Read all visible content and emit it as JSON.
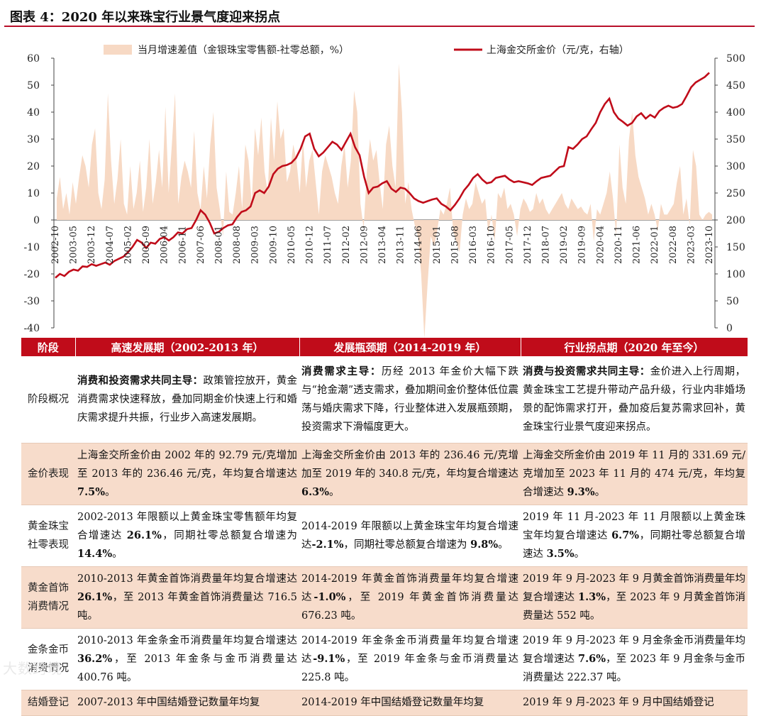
{
  "title": "图表 4：2020 年以来珠宝行业景气度迎来拐点",
  "chart_data": {
    "type": "bar+line",
    "legend": [
      {
        "name": "当月增速差值（金银珠宝零售额-社零总额，%）",
        "kind": "area",
        "color": "#f7d9c4"
      },
      {
        "name": "上海金交所金价（元/克，右轴）",
        "kind": "line",
        "color": "#c00c1a"
      }
    ],
    "left_axis": {
      "ticks": [
        60,
        50,
        40,
        30,
        20,
        10,
        0,
        -10,
        -20,
        -30,
        -40
      ],
      "ylim": [
        -40,
        60
      ]
    },
    "right_axis": {
      "ticks": [
        500,
        450,
        400,
        350,
        300,
        250,
        200,
        150,
        100,
        50,
        0
      ],
      "ylim": [
        0,
        500
      ]
    },
    "x_labels": [
      "2002-10",
      "2003-05",
      "2003-12",
      "2004-07",
      "2005-02",
      "2005-09",
      "2006-04",
      "2006-11",
      "2007-06",
      "2008-01",
      "2008-08",
      "2009-03",
      "2009-10",
      "2010-05",
      "2010-12",
      "2011-07",
      "2012-02",
      "2012-09",
      "2013-04",
      "2013-11",
      "2014-06",
      "2015-01",
      "2015-08",
      "2016-03",
      "2016-10",
      "2017-05",
      "2017-12",
      "2018-07",
      "2019-02",
      "2019-09",
      "2020-04",
      "2020-11",
      "2021-06",
      "2022-01",
      "2022-08",
      "2023-03",
      "2023-10"
    ],
    "diff_series": [
      8,
      16,
      4,
      10,
      2,
      14,
      6,
      16,
      24,
      20,
      12,
      28,
      34,
      10,
      4,
      15,
      47,
      22,
      6,
      15,
      30,
      6,
      2,
      20,
      4,
      10,
      22,
      3,
      12,
      30,
      6,
      14,
      26,
      12,
      42,
      10,
      28,
      47,
      6,
      16,
      22,
      18,
      12,
      33,
      10,
      4,
      20,
      8,
      28,
      40,
      12,
      4,
      -6,
      18,
      3,
      2,
      10,
      20,
      4,
      28,
      22,
      6,
      34,
      24,
      38,
      18,
      10,
      38,
      22,
      44,
      30,
      34,
      14,
      18,
      28,
      22,
      10,
      30,
      12,
      22,
      26,
      14,
      2,
      18,
      24,
      20,
      16,
      10,
      6,
      20,
      28,
      12,
      22,
      48,
      40,
      6,
      -3,
      18,
      30,
      22,
      26,
      14,
      4,
      28,
      35,
      20,
      12,
      58,
      40,
      6,
      14,
      4,
      -2,
      -6,
      -20,
      -44,
      -24,
      -6,
      -10,
      -4,
      4,
      2,
      6,
      12,
      -4,
      -8,
      -12,
      2,
      8,
      4,
      6,
      14,
      10,
      6,
      8,
      -5,
      2,
      -8,
      10,
      8,
      12,
      4,
      6,
      2,
      -6,
      4,
      8,
      6,
      3,
      4,
      10,
      6,
      8,
      4,
      2,
      4,
      6,
      8,
      10,
      6,
      4,
      8,
      6,
      4,
      5,
      3,
      2,
      6,
      -8,
      4,
      2,
      6,
      10,
      18,
      8,
      -6,
      28,
      12,
      6,
      30,
      40,
      24,
      16,
      12,
      8,
      2,
      6,
      2,
      -4,
      6,
      2,
      2,
      4,
      6,
      14,
      20,
      2,
      8,
      -2,
      26,
      20,
      2,
      0,
      2,
      3,
      2
    ],
    "gold_series": [
      92.79,
      100,
      96,
      104,
      108,
      106,
      114,
      113,
      118,
      115,
      118,
      121,
      117,
      124,
      128,
      132,
      140,
      150,
      163,
      158,
      148,
      158,
      156,
      165,
      168,
      162,
      168,
      177,
      175,
      183,
      185,
      200,
      218,
      210,
      195,
      175,
      178,
      185,
      190,
      192,
      205,
      215,
      218,
      225,
      250,
      255,
      250,
      262,
      285,
      295,
      300,
      302,
      306,
      315,
      332,
      355,
      360,
      332,
      318,
      325,
      335,
      345,
      340,
      330,
      345,
      360,
      335,
      320,
      280,
      250,
      260,
      262,
      268,
      272,
      258,
      252,
      260,
      258,
      250,
      240,
      235,
      232,
      235,
      238,
      240,
      230,
      225,
      218,
      228,
      240,
      255,
      265,
      278,
      285,
      275,
      268,
      270,
      278,
      280,
      282,
      275,
      270,
      272,
      270,
      268,
      265,
      272,
      278,
      280,
      282,
      290,
      298,
      300,
      335,
      332,
      340,
      350,
      355,
      368,
      380,
      400,
      415,
      425,
      400,
      388,
      382,
      375,
      380,
      392,
      398,
      388,
      395,
      390,
      402,
      408,
      412,
      408,
      410,
      415,
      430,
      446,
      455,
      460,
      465,
      473
    ],
    "gold_start": 92.79,
    "gold_end": 474
  },
  "table": {
    "headers": [
      "阶段",
      "高速发展期（2002-2013 年）",
      "发展瓶颈期（2014-2019 年）",
      "行业拐点期（2020 年至今）"
    ],
    "rows": [
      {
        "label": "阶段概况",
        "cells": [
          {
            "b": "消费和投资需求共同主导：",
            "t": "政策管控放开，黄金消费需求快速释放，叠加同期金价快速上行和婚庆需求提升共振，行业步入高速发展期。"
          },
          {
            "b": "消费需求主导：",
            "t": "历经 2013 年金价大幅下跌与“抢金潮”透支需求，叠加期间金价整体低位震荡与婚庆需求下降，行业整体进入发展瓶颈期，投资需求下滑幅度更大。"
          },
          {
            "b": "消费与投资需求共同主导：",
            "t": "金价进入上行周期，黄金珠宝工艺提升带动产品升级，行业内非婚场景的配饰需求打开，叠加疫后复苏需求回补，黄金珠宝行业景气度迎来拐点。"
          }
        ]
      },
      {
        "label": "金价表现",
        "cells": [
          {
            "t": "上海金交所金价由 2002 年的 92.79 元/克增加至 2013 年的 236.46 元/克，年均复合增速达 ",
            "b2": "7.5%",
            "t2": "。"
          },
          {
            "t": "上海金交所金价由 2013 年的 236.46 元/克增加至 2019 年的 340.8 元/克，年均复合增速达 ",
            "b2": "6.3%",
            "t2": "。"
          },
          {
            "t": "上海金交所金价由 2019 年 11 月的 331.69 元/克增加至 2023 年 11 月的 474 元/克，年均复合增速达 ",
            "b2": "9.3%",
            "t2": "。"
          }
        ]
      },
      {
        "label": "黄金珠宝社零表现",
        "cells": [
          {
            "t": "2002-2013 年限额以上黄金珠宝零售额年均复合增速达 ",
            "b2": "26.1%",
            "t2": "，同期社零总额复合增速为 ",
            "b3": "14.4%",
            "t3": "。"
          },
          {
            "t": "2014-2019 年限额以上黄金珠宝年均复合增速达",
            "b2": "-2.1%",
            "t2": "，同期社零总额复合增速为 ",
            "b3": "9.8%",
            "t3": "。"
          },
          {
            "t": "2019 年 11 月-2023 年 11 月限额以上黄金珠宝年均复合增速达 ",
            "b2": "6.7%",
            "t2": "，同期社零总额复合增速达 ",
            "b3": "3.5%",
            "t3": "。"
          }
        ]
      },
      {
        "label": "黄金首饰消费情况",
        "cells": [
          {
            "t": "2010-2013 年黄金首饰消费量年均复合增速达 ",
            "b2": "26.1%",
            "t2": "，至 2013 年黄金首饰消费量达 716.5 吨。"
          },
          {
            "t": "2014-2019 年黄金首饰消费量年均复合增速达",
            "b2": "-1.0%",
            "t2": "，至 2019 年黄金首饰消费量达 676.23 吨。"
          },
          {
            "t": "2019 年 9 月-2023 年 9 月黄金首饰消费量年均复合增速达 ",
            "b2": "1.3%",
            "t2": "，至 2023 年 9 月黄金首饰消费量达 552 吨。"
          }
        ]
      },
      {
        "label": "金条金币消费情况",
        "cells": [
          {
            "t": "2010-2013 年金条金币消费量年均复合增速达 ",
            "b2": "36.2%",
            "t2": "，至 2013 年金条与金币消费量达 400.76 吨。"
          },
          {
            "t": "2014-2019 年金条金币消费量年均复合增速达",
            "b2": "-9.1%",
            "t2": "，至 2019 年金条与金币消费量达 225.8 吨。"
          },
          {
            "t": "2019 年 9 月-2023 年 9 月金条金币消费量年均复合增速达 ",
            "b2": "7.6%",
            "t2": "，至 2023 年 9 月金条与金币消费量达 222.37 吨。"
          }
        ]
      },
      {
        "label": "结婚登记",
        "cells": [
          {
            "t": "2007-2013 年中国结婚登记数量年均复"
          },
          {
            "t": "2014-2019 年中国结婚登记数量年均复"
          },
          {
            "t": "2019 年 9 月-2023 年 9 月中国结婚登记"
          }
        ]
      }
    ]
  },
  "watermark": "大数跨境"
}
